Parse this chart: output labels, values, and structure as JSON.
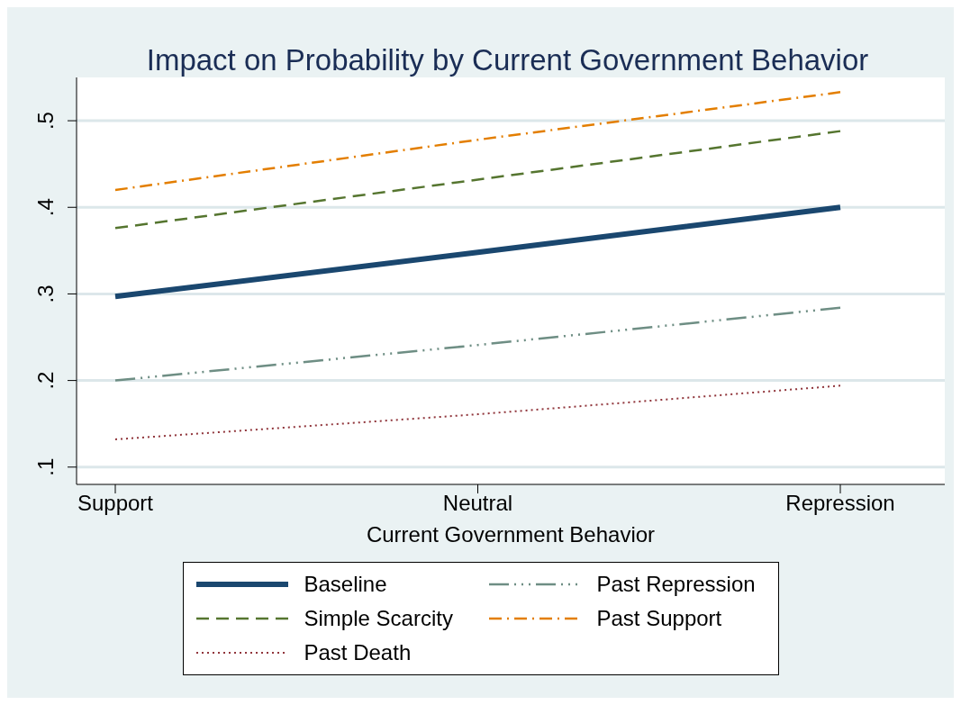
{
  "chart_data": {
    "type": "line",
    "title": "Impact on Probability by Current Government Behavior",
    "xlabel": "Current Government Behavior",
    "categories": [
      "Support",
      "Neutral",
      "Repression"
    ],
    "ylim": [
      0.08,
      0.55
    ],
    "yticks": [
      {
        "value": 0.1,
        "label": ".1"
      },
      {
        "value": 0.2,
        "label": ".2"
      },
      {
        "value": 0.3,
        "label": ".3"
      },
      {
        "value": 0.4,
        "label": ".4"
      },
      {
        "value": 0.5,
        "label": ".5"
      }
    ],
    "grid": "y",
    "legend": "bottom",
    "marker": "none",
    "series": [
      {
        "name": "Baseline",
        "color": "#1a476f",
        "line_style": "solid",
        "values": [
          0.297,
          0.348,
          0.4
        ]
      },
      {
        "name": "Past Repression",
        "color": "#6e8e84",
        "line_style": "dashdotdot",
        "values": [
          0.2,
          0.241,
          0.284
        ]
      },
      {
        "name": "Simple Scarcity",
        "color": "#55752f",
        "line_style": "dashed",
        "values": [
          0.376,
          0.432,
          0.488
        ]
      },
      {
        "name": "Past Support",
        "color": "#e37e00",
        "line_style": "dashdot",
        "values": [
          0.42,
          0.478,
          0.533
        ]
      },
      {
        "name": "Past Death",
        "color": "#90353b",
        "line_style": "dotted",
        "values": [
          0.132,
          0.161,
          0.194
        ]
      }
    ]
  }
}
